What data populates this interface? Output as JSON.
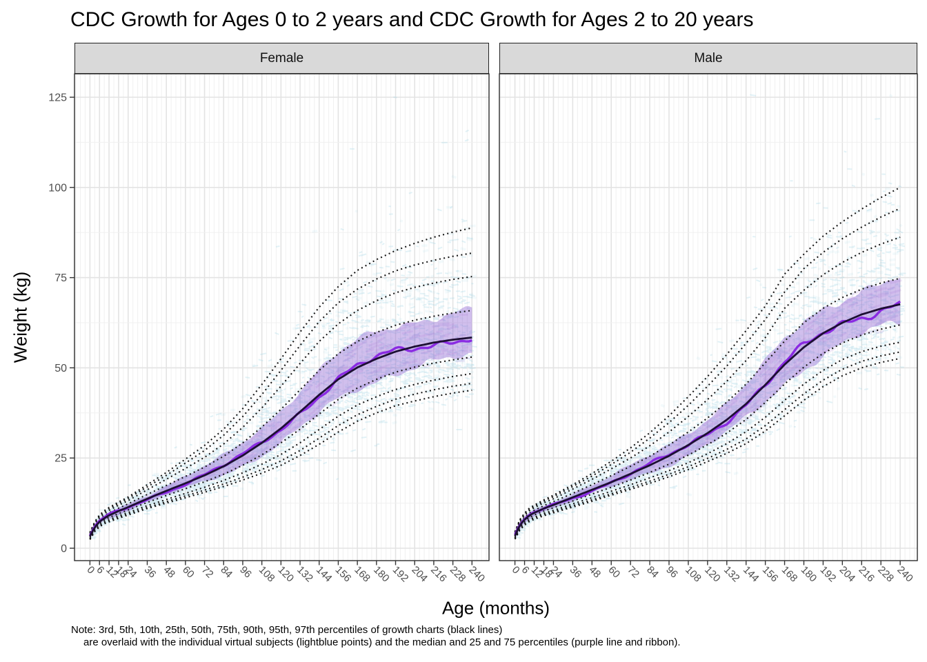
{
  "title": "CDC Growth for Ages 0 to 2 years and CDC Growth for Ages 2 to 20 years",
  "facets": [
    {
      "label": "Female"
    },
    {
      "label": "Male"
    }
  ],
  "axes": {
    "x_title": "Age (months)",
    "y_title": "Weight (kg)",
    "x_ticks": [
      0,
      6,
      12,
      18,
      24,
      36,
      48,
      60,
      72,
      84,
      96,
      108,
      120,
      132,
      144,
      156,
      168,
      180,
      192,
      204,
      216,
      228,
      240
    ],
    "y_ticks": [
      0,
      25,
      50,
      75,
      100,
      125
    ]
  },
  "note": {
    "line1": "Note: 3rd, 5th, 10th, 25th, 50th, 75th, 90th, 95th, 97th percentiles of growth charts (black lines)",
    "line2": "are overlaid with the individual virtual subjects (lightblue points) and the median and 25 and 75 percentiles (purple line and ribbon)."
  },
  "colors": {
    "strip_fill": "#D9D9D9",
    "panel_border": "#2b2b2b",
    "grid_major": "#E3E3E3",
    "grid_minor": "#F0F0F0",
    "percentile_dotted": "#161616",
    "scatter": "#9FD3E3",
    "ribbon_fill": "#8B5FD3",
    "ribbon_alpha": 0.4,
    "subject_median": "#8A2BE2",
    "cdc_median": "#1D0F33",
    "tick_label": "#4D4D4D"
  },
  "chart_data": {
    "type": "line",
    "title": "CDC Growth for Ages 0 to 2 years and CDC Growth for Ages 2 to 20 years",
    "xlabel": "Age (months)",
    "ylabel": "Weight (kg)",
    "xlim": [
      0,
      240
    ],
    "ylim": [
      0,
      125
    ],
    "grid": true,
    "percentile_labels": [
      "3rd",
      "5th",
      "10th",
      "25th",
      "50th",
      "75th",
      "90th",
      "95th",
      "97th"
    ],
    "ages": [
      0,
      3,
      6,
      9,
      12,
      18,
      24,
      36,
      48,
      60,
      72,
      84,
      96,
      108,
      120,
      132,
      144,
      156,
      168,
      180,
      192,
      204,
      216,
      228,
      240
    ],
    "virtual_subjects": {
      "per_facet_points": 3000,
      "style": "lightblue point cloud"
    },
    "facets": [
      {
        "name": "Female",
        "percentiles": {
          "p3": [
            2.4,
            4.6,
            5.9,
            6.8,
            7.3,
            8.3,
            9.2,
            11.0,
            12.5,
            14.0,
            15.5,
            17.1,
            18.9,
            20.8,
            23.0,
            25.7,
            28.8,
            32.2,
            35.2,
            37.5,
            39.5,
            40.8,
            42.0,
            43.0,
            43.8
          ],
          "p5": [
            2.5,
            4.8,
            6.1,
            7.0,
            7.6,
            8.6,
            9.5,
            11.3,
            12.9,
            14.5,
            16.1,
            17.8,
            19.7,
            21.8,
            24.2,
            27.1,
            30.5,
            34.0,
            37.0,
            39.3,
            41.3,
            42.7,
            43.9,
            44.9,
            45.7
          ],
          "p10": [
            2.7,
            5.0,
            6.4,
            7.3,
            7.9,
            9.0,
            9.9,
            11.8,
            13.5,
            15.2,
            16.9,
            18.8,
            20.9,
            23.3,
            26.0,
            29.2,
            32.9,
            36.6,
            39.7,
            42.0,
            44.0,
            45.4,
            46.6,
            47.6,
            48.4
          ],
          "p25": [
            3.0,
            5.4,
            6.9,
            7.8,
            8.5,
            9.6,
            10.6,
            12.7,
            14.6,
            16.5,
            18.4,
            20.5,
            23.0,
            25.9,
            29.2,
            33.0,
            37.2,
            41.2,
            44.4,
            46.8,
            48.8,
            50.2,
            51.3,
            52.2,
            53.0
          ],
          "p50": [
            3.3,
            5.8,
            7.3,
            8.3,
            9.1,
            10.3,
            11.4,
            13.7,
            15.9,
            18.0,
            20.2,
            22.7,
            25.7,
            29.2,
            33.2,
            37.8,
            42.5,
            46.8,
            50.1,
            52.5,
            54.5,
            55.9,
            57.0,
            57.8,
            58.4
          ],
          "p75": [
            3.7,
            6.3,
            7.9,
            9.0,
            9.8,
            11.1,
            12.3,
            14.9,
            17.4,
            19.9,
            22.5,
            25.5,
            29.2,
            33.6,
            38.5,
            43.9,
            49.3,
            53.9,
            57.3,
            59.8,
            61.8,
            63.2,
            64.3,
            65.2,
            65.9
          ],
          "p90": [
            4.0,
            6.8,
            8.5,
            9.6,
            10.5,
            11.9,
            13.2,
            16.2,
            19.1,
            22.1,
            25.2,
            28.9,
            33.5,
            38.9,
            44.9,
            51.2,
            57.3,
            62.2,
            65.9,
            68.6,
            70.8,
            72.3,
            73.5,
            74.5,
            75.3
          ],
          "p95": [
            4.2,
            7.1,
            8.9,
            10.1,
            11.0,
            12.4,
            13.8,
            17.0,
            20.2,
            23.6,
            27.1,
            31.3,
            36.5,
            42.6,
            49.3,
            56.2,
            62.8,
            68.0,
            71.8,
            74.6,
            76.9,
            78.5,
            79.8,
            80.9,
            81.8
          ],
          "p97": [
            4.4,
            7.3,
            9.2,
            10.4,
            11.3,
            12.8,
            14.2,
            17.6,
            21.0,
            24.7,
            28.5,
            33.0,
            38.7,
            45.4,
            52.5,
            59.9,
            66.8,
            72.5,
            77.0,
            80.0,
            82.5,
            84.5,
            86.2,
            87.6,
            88.8
          ]
        }
      },
      {
        "name": "Male",
        "percentiles": {
          "p3": [
            2.5,
            5.0,
            6.4,
            7.4,
            8.0,
            9.0,
            9.8,
            11.4,
            13.0,
            14.7,
            16.3,
            18.0,
            19.8,
            21.8,
            24.0,
            26.3,
            29.0,
            32.5,
            36.7,
            41.0,
            44.8,
            47.8,
            50.0,
            51.5,
            52.6
          ],
          "p5": [
            2.6,
            5.2,
            6.6,
            7.6,
            8.3,
            9.3,
            10.1,
            11.8,
            13.4,
            15.1,
            16.8,
            18.6,
            20.5,
            22.6,
            24.9,
            27.4,
            30.3,
            34.0,
            38.4,
            42.8,
            46.6,
            49.6,
            51.8,
            53.3,
            54.4
          ],
          "p10": [
            2.8,
            5.5,
            6.9,
            7.9,
            8.6,
            9.7,
            10.5,
            12.3,
            14.0,
            15.8,
            17.6,
            19.5,
            21.5,
            23.7,
            26.2,
            29.0,
            32.3,
            36.3,
            41.0,
            45.5,
            49.3,
            52.3,
            54.5,
            56.0,
            57.1
          ],
          "p25": [
            3.1,
            5.9,
            7.4,
            8.5,
            9.2,
            10.3,
            11.2,
            13.1,
            15.0,
            16.9,
            18.9,
            21.0,
            23.3,
            25.8,
            28.7,
            31.9,
            35.7,
            40.4,
            45.5,
            50.2,
            54.0,
            56.9,
            59.1,
            60.7,
            61.9
          ],
          "p50": [
            3.4,
            6.4,
            7.9,
            9.1,
            9.8,
            11.0,
            12.0,
            14.1,
            16.2,
            18.3,
            20.6,
            23.0,
            25.6,
            28.6,
            31.9,
            35.6,
            40.0,
            45.3,
            50.9,
            55.7,
            59.6,
            62.5,
            64.8,
            66.4,
            67.6
          ],
          "p75": [
            3.8,
            6.9,
            8.5,
            9.7,
            10.5,
            11.8,
            12.9,
            15.2,
            17.6,
            20.1,
            22.7,
            25.5,
            28.6,
            32.2,
            36.1,
            40.5,
            45.5,
            51.4,
            57.4,
            62.5,
            66.5,
            69.5,
            71.8,
            73.5,
            74.8
          ],
          "p90": [
            4.2,
            7.4,
            9.1,
            10.4,
            11.2,
            12.6,
            13.7,
            16.4,
            19.1,
            22.0,
            25.0,
            28.4,
            32.2,
            36.5,
            41.2,
            46.3,
            52.0,
            58.4,
            66.5,
            71.5,
            75.8,
            79.2,
            82.0,
            84.3,
            86.2
          ],
          "p95": [
            4.4,
            7.7,
            9.5,
            10.8,
            11.6,
            13.1,
            14.3,
            17.1,
            20.0,
            23.2,
            26.6,
            30.5,
            34.8,
            39.6,
            44.9,
            50.5,
            56.8,
            63.4,
            71.0,
            77.5,
            82.0,
            85.8,
            89.0,
            91.8,
            94.2
          ],
          "p97": [
            4.6,
            7.9,
            9.7,
            11.1,
            11.9,
            13.4,
            14.7,
            17.6,
            20.7,
            24.1,
            27.8,
            32.0,
            36.7,
            42.0,
            47.6,
            53.7,
            60.3,
            67.1,
            76.0,
            81.5,
            86.5,
            90.5,
            94.0,
            97.2,
            100.0
          ]
        }
      }
    ]
  }
}
